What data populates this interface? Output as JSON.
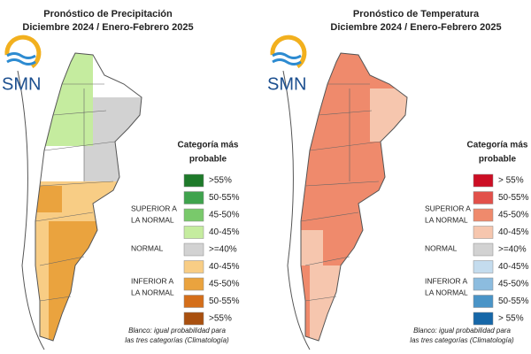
{
  "panels": [
    {
      "title": "Pronóstico de Precipitación",
      "subtitle": "Diciembre 2024 / Enero-Febrero 2025",
      "logo": "SMN",
      "legend_title": [
        "Categoría más",
        "probable"
      ],
      "groups": [
        [
          "SUPERIOR A",
          "LA NORMAL"
        ],
        [
          "NORMAL"
        ],
        [
          "INFERIOR A",
          "LA NORMAL"
        ]
      ],
      "items": [
        {
          "label": ">55%",
          "color": "#1e7a2a"
        },
        {
          "label": "50-55%",
          "color": "#3fa34d"
        },
        {
          "label": "45-50%",
          "color": "#79c96b"
        },
        {
          "label": "40-45%",
          "color": "#c5ec9f"
        },
        {
          "label": ">=40%",
          "color": "#d2d2d2"
        },
        {
          "label": "40-45%",
          "color": "#f8cd85"
        },
        {
          "label": "45-50%",
          "color": "#eaa33e"
        },
        {
          "label": "50-55%",
          "color": "#d46e1a"
        },
        {
          "label": ">55%",
          "color": "#a9500f"
        }
      ],
      "footnote": [
        "Blanco: igual probabilidad para",
        "las tres categorías (Climatología)"
      ]
    },
    {
      "title": "Pronóstico de Temperatura",
      "subtitle": "Diciembre 2024 / Enero-Febrero 2025",
      "logo": "SMN",
      "legend_title": [
        "Categoría más",
        "probable"
      ],
      "groups": [
        [
          "SUPERIOR A",
          "LA NORMAL"
        ],
        [
          "NORMAL"
        ],
        [
          "INFERIOR A",
          "LA NORMAL"
        ]
      ],
      "items": [
        {
          "label": "> 55%",
          "color": "#cc0e24"
        },
        {
          "label": "50-55%",
          "color": "#e2504a"
        },
        {
          "label": "45-50%",
          "color": "#ef8a6c"
        },
        {
          "label": "40-45%",
          "color": "#f6c6ae"
        },
        {
          "label": ">=40%",
          "color": "#d2d2d2"
        },
        {
          "label": "40-45%",
          "color": "#c4dcee"
        },
        {
          "label": "45-50%",
          "color": "#8cbcdf"
        },
        {
          "label": "50-55%",
          "color": "#4a94c7"
        },
        {
          "label": "> 55%",
          "color": "#1667a8"
        }
      ],
      "footnote": [
        "Blanco: igual probabilidad para",
        "las tres categorías (Climatología)"
      ]
    }
  ]
}
